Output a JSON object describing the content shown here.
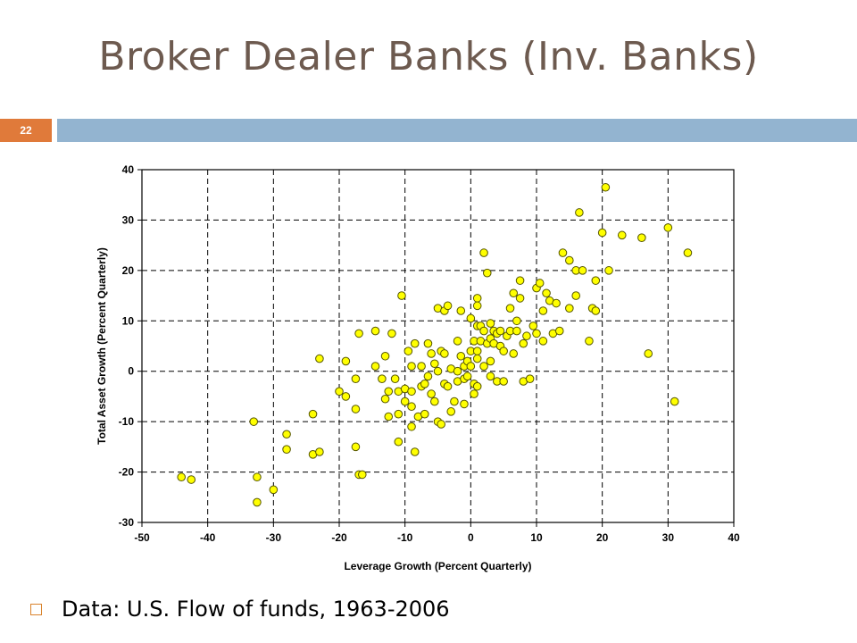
{
  "slide": {
    "title": "Broker Dealer Banks (Inv. Banks)",
    "page_number": "22"
  },
  "bullet": {
    "text": "Data: U.S. Flow of funds, 1963-2006"
  },
  "colors": {
    "title": "#6d5a4f",
    "badge": "#e07a3a",
    "header_bar": "#93b4d0",
    "point_fill": "#ffff00",
    "point_stroke": "#555500",
    "bullet_icon": "#d9822b"
  },
  "chart_data": {
    "type": "scatter",
    "title": "",
    "xlabel": "Leverage Growth (Percent Quarterly)",
    "ylabel": "Total Asset Growth (Percent Quarterly)",
    "xlim": [
      -50,
      40
    ],
    "ylim": [
      -30,
      40
    ],
    "xticks": [
      "-50",
      "-40",
      "-30",
      "-20",
      "-10",
      "0",
      "10",
      "20",
      "30",
      "40"
    ],
    "yticks": [
      "40",
      "30",
      "20",
      "10",
      "0",
      "-10",
      "-20",
      "-30"
    ],
    "grid": true,
    "grid_style": "dashed",
    "points": [
      [
        -44,
        -21
      ],
      [
        -42.5,
        -21.5
      ],
      [
        -33,
        -10
      ],
      [
        -32.5,
        -21
      ],
      [
        -32.5,
        -26
      ],
      [
        -30,
        -23.5
      ],
      [
        -28,
        -12.5
      ],
      [
        -28,
        -15.5
      ],
      [
        -24,
        -8.5
      ],
      [
        -24,
        -16.5
      ],
      [
        -23,
        2.5
      ],
      [
        -23,
        -16
      ],
      [
        -20,
        -4
      ],
      [
        -19,
        2
      ],
      [
        -19,
        -5
      ],
      [
        -17.5,
        -1.5
      ],
      [
        -17.5,
        -7.5
      ],
      [
        -17.5,
        -15
      ],
      [
        -17,
        7.5
      ],
      [
        -17,
        -20.5
      ],
      [
        -16.5,
        -20.5
      ],
      [
        -14.5,
        1
      ],
      [
        -14.5,
        8
      ],
      [
        -13.5,
        -1.5
      ],
      [
        -13,
        3
      ],
      [
        -13,
        -5.5
      ],
      [
        -12.5,
        -9
      ],
      [
        -12.5,
        -4
      ],
      [
        -12,
        7.5
      ],
      [
        -11.5,
        -1.5
      ],
      [
        -11,
        -4
      ],
      [
        -11,
        -8.5
      ],
      [
        -11,
        -14
      ],
      [
        -10.5,
        15
      ],
      [
        -10,
        -3.5
      ],
      [
        -10,
        -6
      ],
      [
        -9.5,
        4
      ],
      [
        -9,
        1
      ],
      [
        -9,
        -4
      ],
      [
        -9,
        -7
      ],
      [
        -9,
        -11
      ],
      [
        -8.5,
        5.5
      ],
      [
        -8.5,
        -16
      ],
      [
        -8,
        -9
      ],
      [
        -7.5,
        1
      ],
      [
        -7.5,
        -3
      ],
      [
        -7,
        -2.5
      ],
      [
        -7,
        -8.5
      ],
      [
        -6.5,
        -1
      ],
      [
        -6.5,
        5.5
      ],
      [
        -6,
        3.5
      ],
      [
        -6,
        -4.5
      ],
      [
        -5.5,
        1.5
      ],
      [
        -5.5,
        -6
      ],
      [
        -5,
        12.5
      ],
      [
        -5,
        0
      ],
      [
        -5,
        -10
      ],
      [
        -4.5,
        -10.5
      ],
      [
        -4.5,
        4
      ],
      [
        -4,
        12
      ],
      [
        -4,
        3.5
      ],
      [
        -4,
        -2.5
      ],
      [
        -3.5,
        13
      ],
      [
        -3.5,
        -3
      ],
      [
        -3,
        0.5
      ],
      [
        -3,
        -8
      ],
      [
        -2.5,
        -6
      ],
      [
        -2,
        6
      ],
      [
        -2,
        0
      ],
      [
        -2,
        -2
      ],
      [
        -1.5,
        12
      ],
      [
        -1.5,
        3
      ],
      [
        -1,
        1
      ],
      [
        -1,
        -1.5
      ],
      [
        -1,
        -6.5
      ],
      [
        -0.5,
        2
      ],
      [
        -0.5,
        -1
      ],
      [
        0,
        10.5
      ],
      [
        0,
        4
      ],
      [
        0,
        1
      ],
      [
        0.5,
        6
      ],
      [
        0.5,
        -2.5
      ],
      [
        0.5,
        -4.5
      ],
      [
        1,
        14.5
      ],
      [
        1,
        13
      ],
      [
        1,
        9
      ],
      [
        1,
        4
      ],
      [
        1,
        2.5
      ],
      [
        1,
        -3
      ],
      [
        1.5,
        9
      ],
      [
        1.5,
        6
      ],
      [
        2,
        23.5
      ],
      [
        2,
        8
      ],
      [
        2,
        1
      ],
      [
        2.5,
        19.5
      ],
      [
        2.5,
        5.5
      ],
      [
        3,
        9.5
      ],
      [
        3,
        6.5
      ],
      [
        3,
        2
      ],
      [
        3,
        -1
      ],
      [
        3.5,
        8
      ],
      [
        3.5,
        5.5
      ],
      [
        4,
        7.5
      ],
      [
        4,
        -2
      ],
      [
        4.5,
        8
      ],
      [
        4.5,
        5
      ],
      [
        5,
        4
      ],
      [
        5,
        -2
      ],
      [
        5.5,
        7
      ],
      [
        6,
        12.5
      ],
      [
        6,
        8
      ],
      [
        6.5,
        15.5
      ],
      [
        6.5,
        3.5
      ],
      [
        7,
        10
      ],
      [
        7,
        8
      ],
      [
        7.5,
        18
      ],
      [
        7.5,
        14.5
      ],
      [
        8,
        5.5
      ],
      [
        8,
        -2
      ],
      [
        8.5,
        7
      ],
      [
        9,
        -1.5
      ],
      [
        9.5,
        9
      ],
      [
        10,
        16.5
      ],
      [
        10,
        7.5
      ],
      [
        10.5,
        17.5
      ],
      [
        11,
        12
      ],
      [
        11,
        6
      ],
      [
        11.5,
        15.5
      ],
      [
        12,
        14
      ],
      [
        12.5,
        7.5
      ],
      [
        13,
        13.5
      ],
      [
        13.5,
        8
      ],
      [
        14,
        23.5
      ],
      [
        15,
        22
      ],
      [
        15,
        12.5
      ],
      [
        16,
        20
      ],
      [
        16,
        15
      ],
      [
        16.5,
        31.5
      ],
      [
        17,
        20
      ],
      [
        18,
        6
      ],
      [
        18.5,
        12.5
      ],
      [
        19,
        12
      ],
      [
        19,
        18
      ],
      [
        20,
        27.5
      ],
      [
        20.5,
        36.5
      ],
      [
        21,
        20
      ],
      [
        23,
        27
      ],
      [
        26,
        26.5
      ],
      [
        27,
        3.5
      ],
      [
        30,
        28.5
      ],
      [
        31,
        -6
      ],
      [
        33,
        23.5
      ]
    ]
  }
}
